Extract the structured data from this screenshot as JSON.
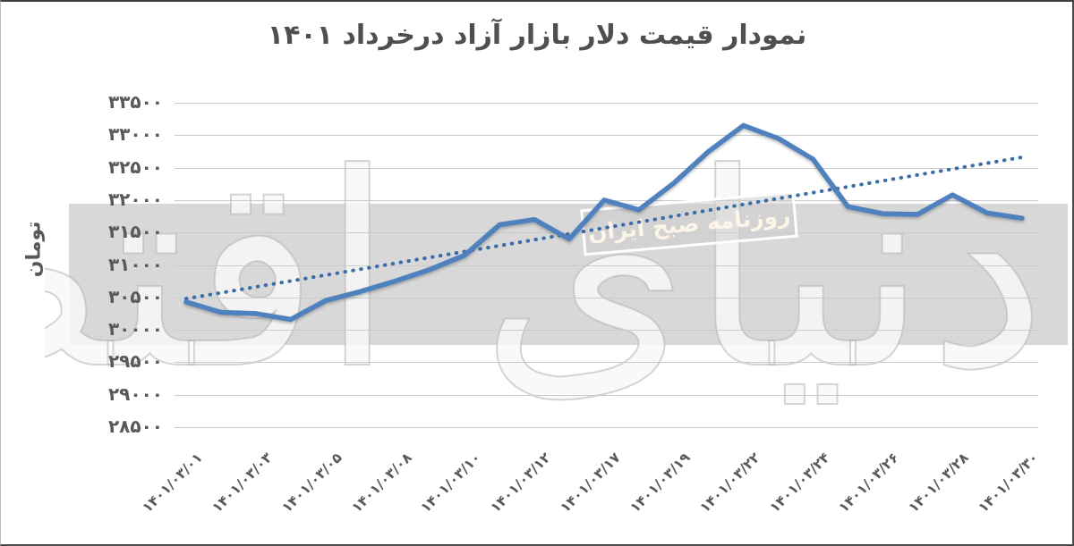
{
  "watermark": {
    "big_text": "دنیای اقتصاد",
    "stamp_text": "روزنامه صبح ایران",
    "band_color": "#d8d8d8"
  },
  "chart_data": {
    "type": "line",
    "title": "نمودار قیمت دلار بازار آزاد درخرداد ۱۴۰۱",
    "xlabel": "",
    "ylabel": "تومان",
    "ylim": [
      28500,
      33500
    ],
    "ytick_step": 500,
    "grid": true,
    "legend_position": "none",
    "ytick_labels_fa": [
      "۳۳۵۰۰",
      "۳۳۰۰۰",
      "۳۲۵۰۰",
      "۳۲۰۰۰",
      "۳۱۵۰۰",
      "۳۱۰۰۰",
      "۳۰۵۰۰",
      "۳۰۰۰۰",
      "۲۹۵۰۰",
      "۲۹۰۰۰",
      "۲۸۵۰۰"
    ],
    "ytick_values": [
      33500,
      33000,
      32500,
      32000,
      31500,
      31000,
      30500,
      30000,
      29500,
      29000,
      28500
    ],
    "x_tick_labels_fa": [
      "۱۴۰۱/۰۳/۰۱",
      "۱۴۰۱/۰۳/۰۳",
      "۱۴۰۱/۰۳/۰۵",
      "۱۴۰۱/۰۳/۰۸",
      "۱۴۰۱/۰۳/۱۰",
      "۱۴۰۱/۰۳/۱۲",
      "۱۴۰۱/۰۳/۱۷",
      "۱۴۰۱/۰۳/۱۹",
      "۱۴۰۱/۰۳/۲۲",
      "۱۴۰۱/۰۳/۲۴",
      "۱۴۰۱/۰۳/۲۶",
      "۱۴۰۱/۰۳/۲۸",
      "۱۴۰۱/۰۳/۳۰"
    ],
    "x_tick_point_indices": [
      0,
      2,
      4,
      6,
      8,
      10,
      12,
      14,
      16,
      18,
      20,
      22,
      24
    ],
    "series": [
      {
        "name": "free-market-dollar-price-toman",
        "style": "solid",
        "color": "#4e81bd",
        "values": [
          30430,
          30270,
          30250,
          30160,
          30450,
          30590,
          30750,
          30930,
          31150,
          31620,
          31700,
          31400,
          32000,
          31850,
          32260,
          32750,
          33150,
          32950,
          32630,
          31900,
          31790,
          31780,
          32080,
          31800,
          31720
        ]
      },
      {
        "name": "linear-trendline",
        "style": "dotted",
        "color": "#3a6ca8",
        "start_value": 30480,
        "end_value": 32660
      }
    ]
  }
}
